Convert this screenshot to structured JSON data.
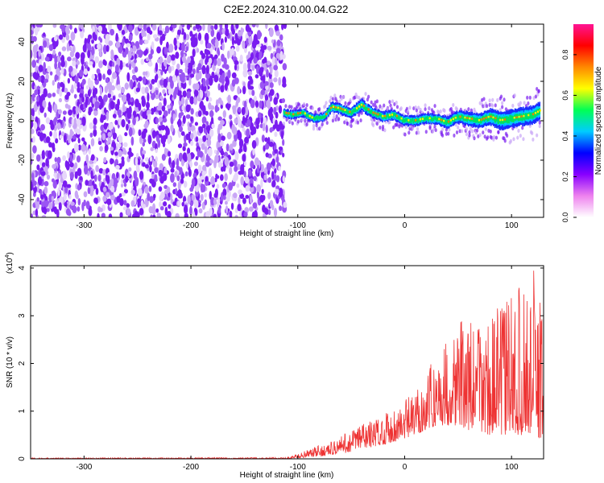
{
  "title": "C2E2.2024.310.00.04.G22",
  "colors": {
    "scatter": "#7a1cf0",
    "signal_track": "#1030ff",
    "snr_line": "#ee3333",
    "colorbar_stops": [
      "#ffffff",
      "#ee82ee",
      "#8800ff",
      "#0000ff",
      "#00ccff",
      "#00ff55",
      "#ffff00",
      "#ff8800",
      "#ff0000",
      "#ff1493"
    ]
  },
  "chart_data": [
    {
      "type": "heatmap",
      "description_ref": "spectrogram",
      "xlabel": "Height of straight line (km)",
      "ylabel": "Frequency (Hz)",
      "xlim": [
        -350,
        130
      ],
      "ylim": [
        -49,
        49
      ],
      "xticks": [
        -300,
        -200,
        -100,
        0,
        100
      ],
      "yticks": [
        -40,
        -20,
        0,
        20,
        40
      ],
      "noise_region_x": [
        -350,
        -112
      ],
      "signal_track": {
        "x": [
          -113,
          -105,
          -95,
          -85,
          -75,
          -68,
          -60,
          -50,
          -40,
          -30,
          -20,
          -10,
          0,
          10,
          20,
          30,
          40,
          50,
          60,
          70,
          80,
          90,
          100,
          110,
          120,
          127
        ],
        "freq": [
          4,
          3,
          4,
          1,
          2,
          7,
          6,
          4,
          8,
          4,
          2,
          3,
          0,
          0,
          1,
          1,
          -1,
          2,
          1,
          0,
          2,
          0,
          1,
          2,
          3,
          5
        ],
        "width": [
          4,
          4,
          4,
          4,
          4,
          5,
          5,
          5,
          6,
          5,
          5,
          5,
          5,
          5,
          5,
          5,
          6,
          6,
          7,
          7,
          8,
          9,
          9,
          9,
          9,
          9
        ]
      },
      "colorbar": {
        "label": "Normalized spectral amplitude",
        "range": [
          0,
          0.95
        ],
        "ticks": [
          "0.0",
          "0.2",
          "0.4",
          "0.6",
          "0.8"
        ],
        "tick_values": [
          0,
          0.2,
          0.4,
          0.6,
          0.8
        ]
      }
    },
    {
      "type": "line",
      "series_ref": "snr",
      "xlabel": "Height of straight line (km)",
      "ylabel": "SNR (10 * v/v)",
      "multiplier_label": "(x10",
      "multiplier_exp": "4",
      "multiplier_close": ")",
      "xlim": [
        -350,
        130
      ],
      "ylim": [
        0,
        4.05
      ],
      "xticks": [
        -300,
        -200,
        -100,
        0,
        100
      ],
      "yticks": [
        0,
        1,
        2,
        3,
        4
      ],
      "envelope": {
        "x": [
          -350,
          -110,
          -100,
          -90,
          -80,
          -70,
          -60,
          -50,
          -40,
          -30,
          -20,
          -10,
          0,
          10,
          20,
          30,
          40,
          50,
          60,
          70,
          80,
          90,
          100,
          110,
          120,
          128
        ],
        "min": [
          0.0,
          0.0,
          0.02,
          0.03,
          0.05,
          0.08,
          0.1,
          0.15,
          0.2,
          0.25,
          0.3,
          0.35,
          0.4,
          0.5,
          0.6,
          0.7,
          0.7,
          0.7,
          0.6,
          0.55,
          0.5,
          0.5,
          0.5,
          0.5,
          0.45,
          0.4
        ],
        "max": [
          0.02,
          0.03,
          0.1,
          0.2,
          0.28,
          0.35,
          0.5,
          0.6,
          0.85,
          0.8,
          0.95,
          1.1,
          1.25,
          1.4,
          1.85,
          2.15,
          2.55,
          3.05,
          2.8,
          3.05,
          2.95,
          3.3,
          3.55,
          3.6,
          4.0,
          3.5
        ]
      }
    }
  ]
}
